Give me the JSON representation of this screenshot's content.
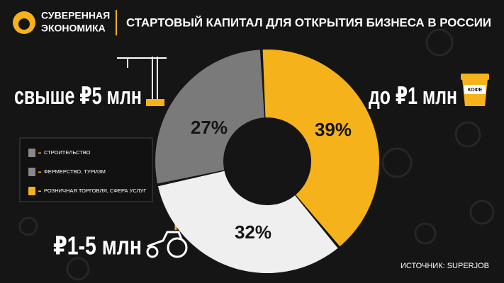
{
  "header": {
    "brand": [
      "СУВЕРЕННАЯ",
      "ЭКОНОМИКА"
    ]
  },
  "chart_data": {
    "type": "donut",
    "title": "СТАРТОВЫЙ КАПИТАЛ ДЛЯ ОТКРЫТИЯ БИЗНЕСА В РОССИИ",
    "categories": [
      "до ₽1 млн",
      "₽1-5 млн",
      "свыше ₽5 млн"
    ],
    "values": [
      39,
      32,
      27
    ],
    "value_labels": [
      "39%",
      "32%",
      "27%"
    ],
    "colors": [
      "#f5b21a",
      "#efefef",
      "#7a7a7a"
    ],
    "legend": [
      "СТРОИТЕЛЬСТВО",
      "ФЕРМЕРСТВО, ТУРИЗМ",
      "РОЗНИЧНАЯ ТОРГОВЛЯ, СФЕРА УСЛУГ"
    ],
    "icon_text": "КОФЕ",
    "source": "ИСТОЧНИК: SUPERJOB"
  }
}
